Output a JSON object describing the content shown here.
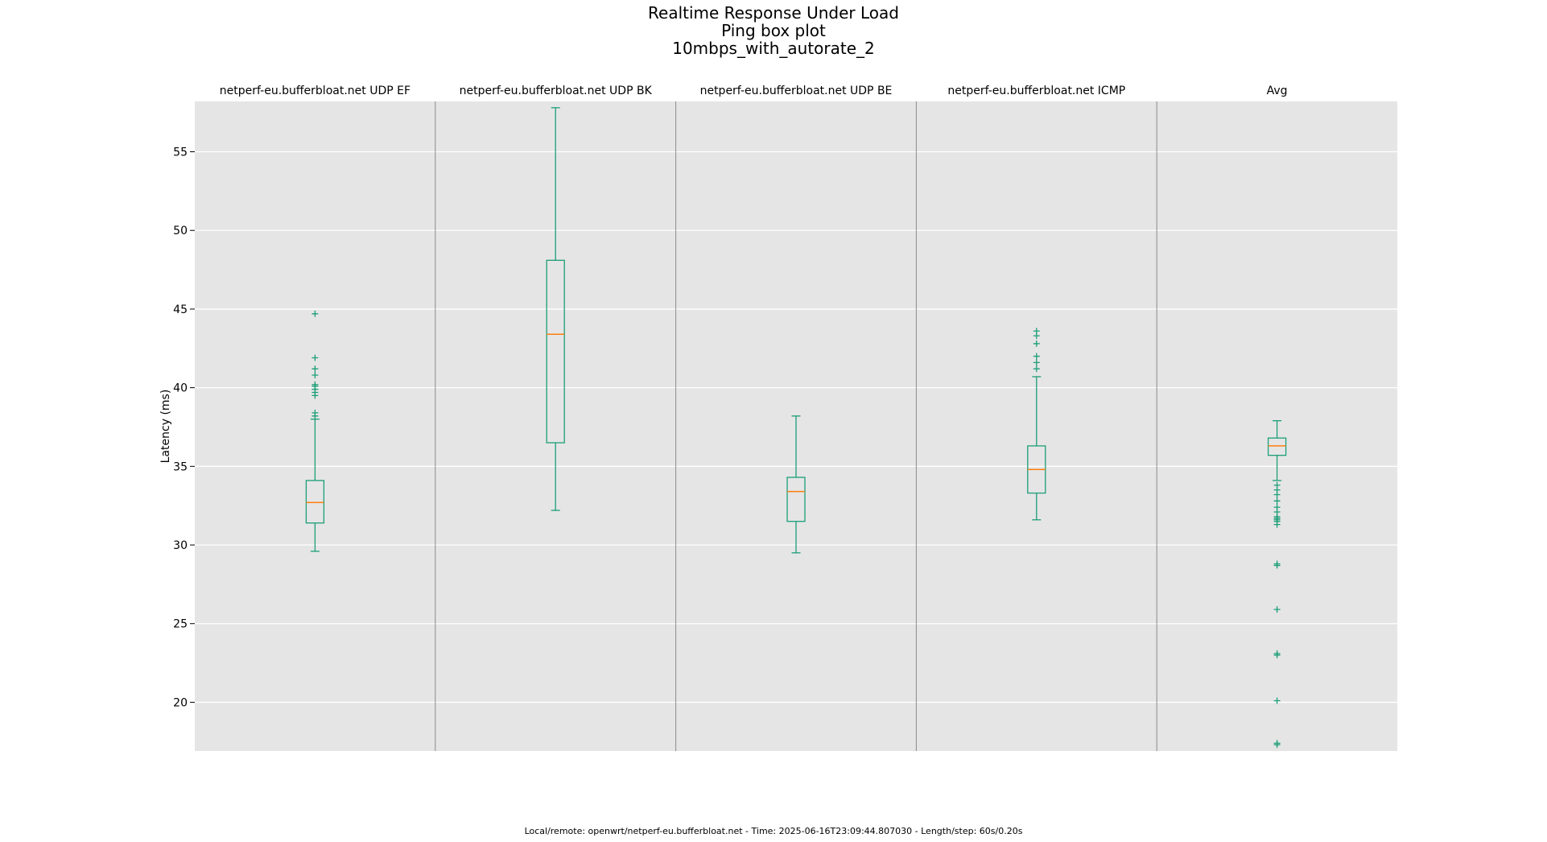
{
  "figure": {
    "title_lines": [
      "Realtime Response Under Load",
      "Ping box plot",
      "10mbps_with_autorate_2"
    ],
    "footer": "Local/remote: openwrt/netperf-eu.bufferbloat.net - Time: 2025-06-16T23:09:44.807030 - Length/step: 60s/0.20s"
  },
  "chart_data": {
    "type": "box",
    "ylabel": "Latency (ms)",
    "ylim": [
      16.9,
      58.2
    ],
    "yticks": [
      20,
      25,
      30,
      35,
      40,
      45,
      50,
      55
    ],
    "grid": true,
    "colors": {
      "background": "#e5e5e5",
      "box": "#1b9e77",
      "median": "#ff7f0e",
      "grid": "#ffffff",
      "divider": "#8c8c8c"
    },
    "panels": [
      {
        "label": "netperf-eu.bufferbloat.net UDP EF",
        "whisker_low": 29.6,
        "q1": 31.4,
        "median": 32.7,
        "q3": 34.1,
        "whisker_high": 38.0,
        "outliers": [
          38.2,
          38.4,
          39.5,
          39.7,
          39.9,
          40.1,
          40.2,
          40.8,
          41.2,
          41.9,
          44.7
        ]
      },
      {
        "label": "netperf-eu.bufferbloat.net UDP BK",
        "whisker_low": 32.2,
        "q1": 36.5,
        "median": 43.4,
        "q3": 48.1,
        "whisker_high": 57.8,
        "outliers": []
      },
      {
        "label": "netperf-eu.bufferbloat.net UDP BE",
        "whisker_low": 29.5,
        "q1": 31.5,
        "median": 33.4,
        "q3": 34.3,
        "whisker_high": 38.2,
        "outliers": []
      },
      {
        "label": "netperf-eu.bufferbloat.net ICMP",
        "whisker_low": 31.6,
        "q1": 33.3,
        "median": 34.8,
        "q3": 36.3,
        "whisker_high": 40.7,
        "outliers": [
          41.2,
          41.6,
          42.0,
          42.8,
          43.3,
          43.6
        ]
      },
      {
        "label": "Avg",
        "whisker_low": 34.1,
        "q1": 35.7,
        "median": 36.3,
        "q3": 36.8,
        "whisker_high": 37.9,
        "outliers": [
          33.8,
          33.5,
          33.2,
          32.8,
          32.4,
          32.1,
          31.8,
          31.7,
          31.6,
          31.5,
          31.3,
          28.8,
          28.7,
          25.9,
          23.1,
          23.0,
          20.1,
          17.4,
          17.3
        ]
      }
    ]
  }
}
